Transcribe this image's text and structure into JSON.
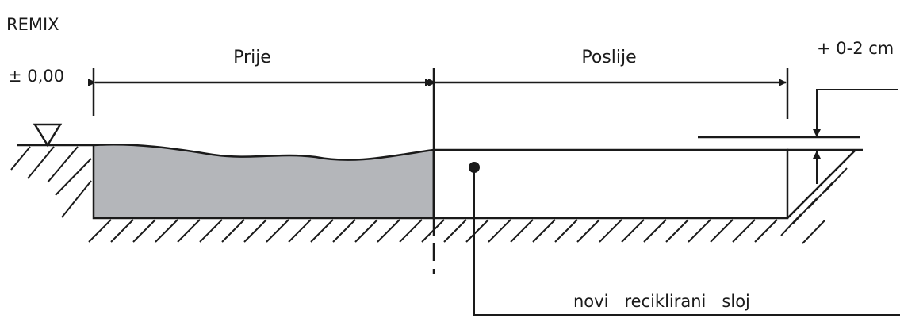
{
  "diagram": {
    "title": "REMIX",
    "level_label": "± 0,00",
    "before_label": "Prije",
    "after_label": "Poslije",
    "thickness_label": "+ 0-2 cm",
    "layer_label": "novi   reciklirani   sloj",
    "colors": {
      "line": "#1a1a1a",
      "old_layer_fill": "#b4b6ba",
      "background": "#ffffff"
    }
  }
}
